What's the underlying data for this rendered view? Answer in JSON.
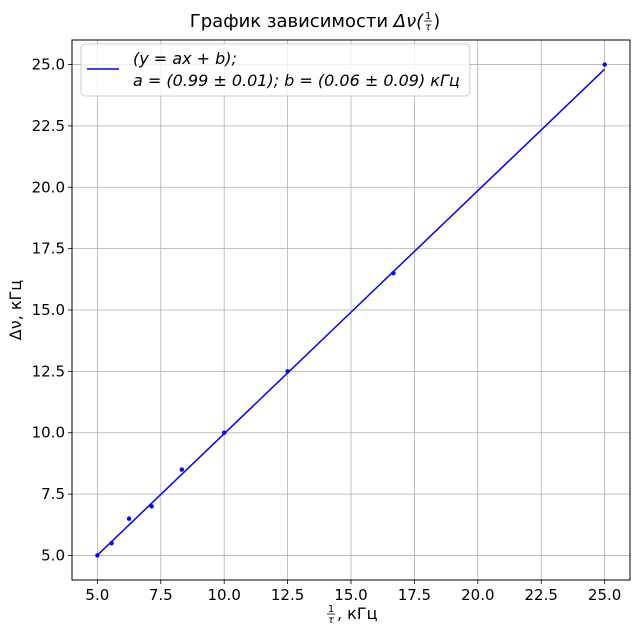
{
  "chart_data": {
    "type": "scatter",
    "title": "График зависимости  Δν(1/τ)",
    "title_prefix": "График зависимости  ",
    "title_func": "Δν(",
    "title_frac_num": "1",
    "title_frac_den": "τ",
    "title_close": ")",
    "xlabel": "1/τ, кГц",
    "xlabel_num": "1",
    "xlabel_den": "τ",
    "xlabel_unit": ", кГц",
    "ylabel": "Δν, кГц",
    "xlim": [
      4.0,
      26.0
    ],
    "ylim": [
      4.0,
      26.0
    ],
    "xticks": [
      5.0,
      7.5,
      10.0,
      12.5,
      15.0,
      17.5,
      20.0,
      22.5,
      25.0
    ],
    "xtick_labels": [
      "5.0",
      "7.5",
      "10.0",
      "12.5",
      "15.0",
      "17.5",
      "20.0",
      "22.5",
      "25.0"
    ],
    "yticks": [
      5.0,
      7.5,
      10.0,
      12.5,
      15.0,
      17.5,
      20.0,
      22.5,
      25.0
    ],
    "ytick_labels": [
      "5.0",
      "7.5",
      "10.0",
      "12.5",
      "15.0",
      "17.5",
      "20.0",
      "22.5",
      "25.0"
    ],
    "grid": true,
    "legend_position": "top-left",
    "series": [
      {
        "kind": "points",
        "x": [
          5.0,
          5.56,
          6.25,
          7.14,
          8.33,
          10.0,
          12.5,
          16.67,
          25.0
        ],
        "y": [
          5.0,
          5.5,
          6.5,
          7.0,
          8.5,
          10.0,
          12.5,
          16.5,
          25.0
        ],
        "color": "#0000ff"
      },
      {
        "kind": "fit-line",
        "legend_line1": "(y = ax + b);",
        "legend_line2": "a = (0.99 ± 0.01); b = (0.06 ± 0.09) кГц",
        "slope": 0.99,
        "intercept": 0.06,
        "x_range": [
          5.0,
          25.0
        ],
        "color": "#0000ff"
      }
    ]
  }
}
